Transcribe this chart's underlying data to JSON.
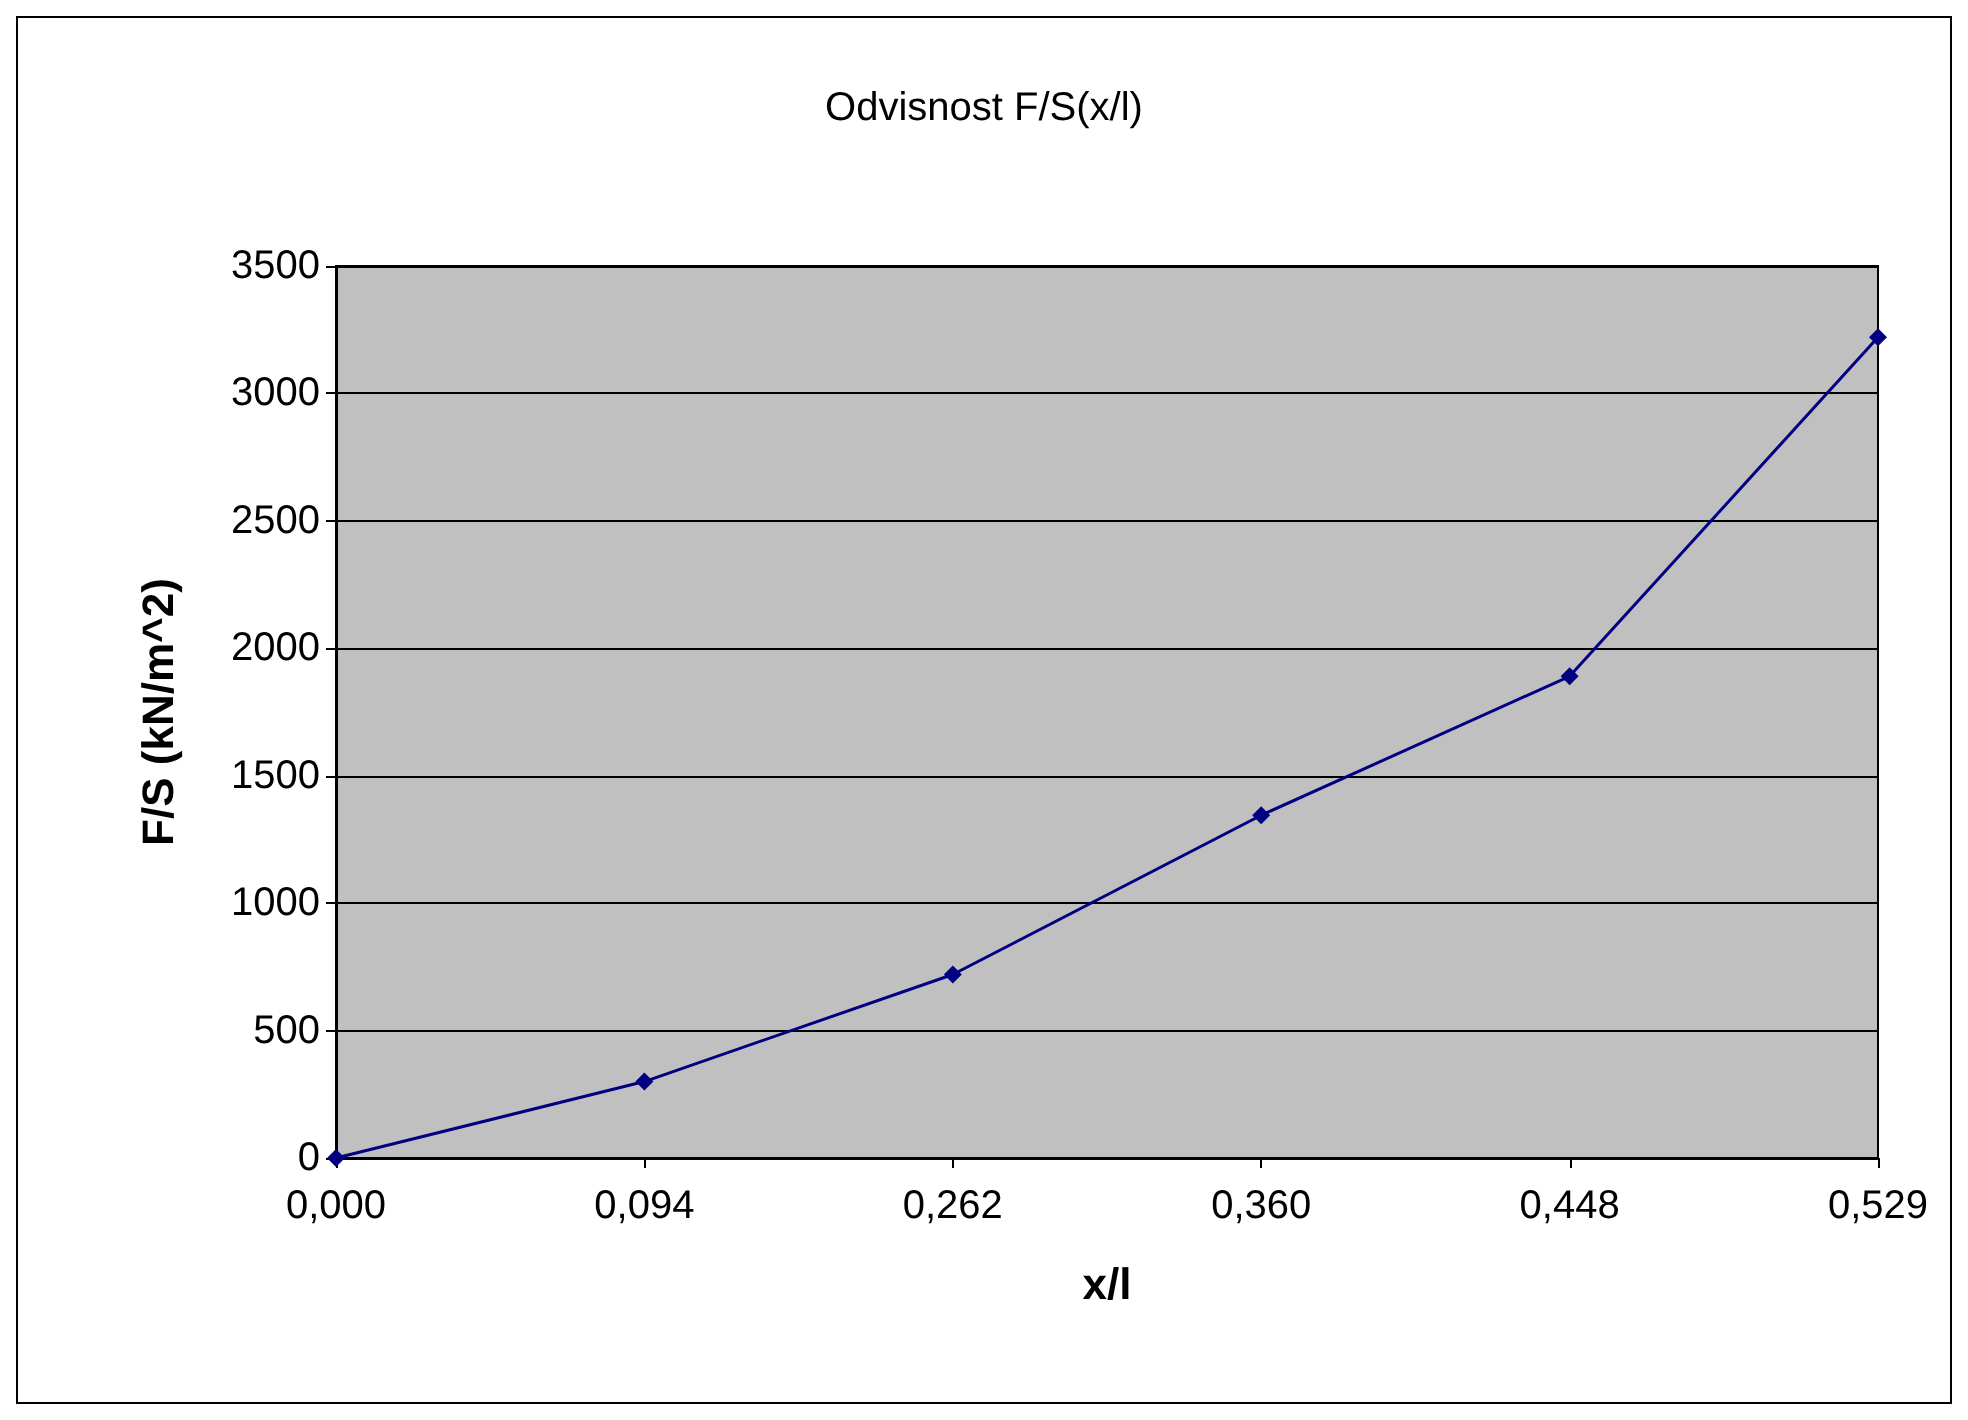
{
  "chart_data": {
    "type": "line",
    "title": "Odvisnost F/S(x/l)",
    "xlabel": "x/l",
    "ylabel": "F/S (kN/m^2)",
    "categories": [
      "0,000",
      "0,094",
      "0,262",
      "0,360",
      "0,448",
      "0,529"
    ],
    "series": [
      {
        "color": "#000080",
        "values": [
          0,
          300,
          720,
          1345,
          1890,
          3220
        ]
      }
    ],
    "ylim": [
      0,
      3500
    ],
    "yticks": [
      0,
      500,
      1000,
      1500,
      2000,
      2500,
      3000,
      3500
    ],
    "grid": "y",
    "marker": "diamond",
    "line_style": "solid"
  }
}
